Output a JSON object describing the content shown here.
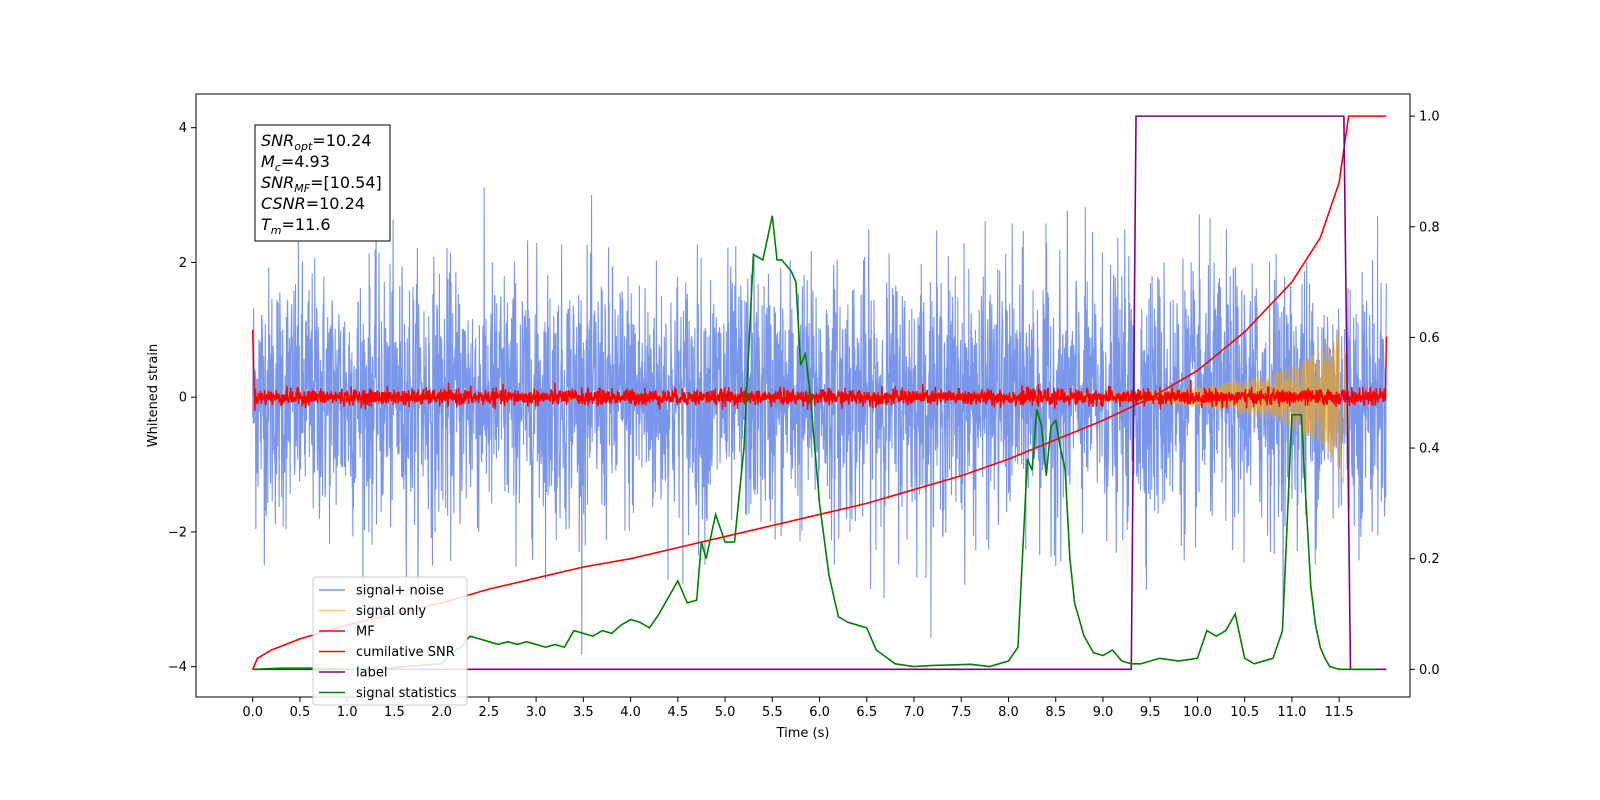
{
  "chart_data": {
    "type": "line",
    "title": "",
    "xlabel": "Time (s)",
    "ylabel": "Whitened strain",
    "ylabel_right": "",
    "xlim": [
      -0.6,
      12.25
    ],
    "ylim": [
      -4.45,
      4.5
    ],
    "ylim_right": [
      -0.05,
      1.04
    ],
    "x_ticks": [
      "0.0",
      "0.5",
      "1.0",
      "1.5",
      "2.0",
      "2.5",
      "3.0",
      "3.5",
      "4.0",
      "4.5",
      "5.0",
      "5.5",
      "6.0",
      "6.5",
      "7.0",
      "7.5",
      "8.0",
      "8.5",
      "9.0",
      "9.5",
      "10.0",
      "10.5",
      "11.0",
      "11.5"
    ],
    "y_ticks_left": [
      "4",
      "2",
      "0",
      "−2",
      "−4"
    ],
    "y_ticks_right": [
      "1.0",
      "0.8",
      "0.6",
      "0.4",
      "0.2",
      "0.0"
    ],
    "grid": false,
    "legend_position": "lower-left",
    "info_box": {
      "snr_opt": "SNR",
      "snr_opt_sub": "opt",
      "snr_opt_val": "=10.24",
      "mc": "M",
      "mc_sub": "c",
      "mc_val": "=4.93",
      "snr_mf": "SNR",
      "snr_mf_sub": "MF",
      "snr_mf_val": "=[10.54]",
      "csnr": "CSNR",
      "csnr_val": "=10.24",
      "tm": "T",
      "tm_sub": "m",
      "tm_val": "=11.6"
    },
    "series": [
      {
        "name": "signal+ noise",
        "color": "#4169e1",
        "axis": "left",
        "kind": "noise",
        "noise_half_range": 2.2,
        "noise_peak": 4.0,
        "x_start": 0.0,
        "x_end": 12.0
      },
      {
        "name": "signal only",
        "color": "#ffa500",
        "axis": "left",
        "kind": "chirp",
        "x_start": 0.0,
        "x_end": 11.6
      },
      {
        "name": "MF",
        "color": "#ff0000",
        "axis": "left",
        "kind": "mf_noise",
        "noise_half_range": 0.2,
        "x_start": 0.0,
        "x_end": 12.0
      },
      {
        "name": "cumilative SNR",
        "color": "#ff0000",
        "axis": "right",
        "x": [
          0.0,
          0.05,
          0.2,
          0.5,
          1.0,
          1.5,
          2.0,
          2.5,
          3.0,
          3.5,
          4.0,
          4.5,
          5.0,
          5.5,
          6.0,
          6.5,
          7.0,
          7.5,
          8.0,
          8.5,
          9.0,
          9.5,
          10.0,
          10.5,
          11.0,
          11.3,
          11.5,
          11.6,
          12.0
        ],
        "y": [
          0.0,
          0.02,
          0.035,
          0.055,
          0.08,
          0.1,
          0.12,
          0.145,
          0.165,
          0.185,
          0.2,
          0.22,
          0.24,
          0.26,
          0.28,
          0.3,
          0.325,
          0.35,
          0.38,
          0.415,
          0.45,
          0.49,
          0.54,
          0.61,
          0.7,
          0.78,
          0.88,
          1.0,
          1.0
        ]
      },
      {
        "name": "label",
        "color": "#800080",
        "axis": "right",
        "x": [
          0.0,
          9.3,
          9.35,
          11.55,
          11.62,
          12.0
        ],
        "y": [
          0.0,
          0.0,
          1.0,
          1.0,
          0.0,
          0.0
        ]
      },
      {
        "name": "signal statistics",
        "color": "#008000",
        "axis": "right",
        "x": [
          0.0,
          0.3,
          0.6,
          1.0,
          1.3,
          1.6,
          2.0,
          2.1,
          2.2,
          2.3,
          2.4,
          2.5,
          2.6,
          2.7,
          2.8,
          2.9,
          3.0,
          3.1,
          3.2,
          3.3,
          3.4,
          3.5,
          3.6,
          3.7,
          3.8,
          3.9,
          4.0,
          4.1,
          4.2,
          4.3,
          4.4,
          4.5,
          4.6,
          4.7,
          4.75,
          4.8,
          4.9,
          5.0,
          5.1,
          5.2,
          5.3,
          5.4,
          5.5,
          5.55,
          5.6,
          5.7,
          5.75,
          5.8,
          5.85,
          5.9,
          6.0,
          6.1,
          6.2,
          6.3,
          6.4,
          6.5,
          6.6,
          6.8,
          7.0,
          7.2,
          7.4,
          7.6,
          7.8,
          8.0,
          8.1,
          8.2,
          8.25,
          8.3,
          8.35,
          8.4,
          8.45,
          8.5,
          8.55,
          8.6,
          8.65,
          8.7,
          8.8,
          8.9,
          9.0,
          9.1,
          9.2,
          9.3,
          9.35,
          9.4,
          9.6,
          9.8,
          10.0,
          10.1,
          10.2,
          10.3,
          10.4,
          10.5,
          10.6,
          10.8,
          10.9,
          11.0,
          11.1,
          11.15,
          11.2,
          11.25,
          11.3,
          11.35,
          11.4,
          11.5,
          11.6,
          11.7,
          11.9
        ],
        "y": [
          0.0,
          0.002,
          0.002,
          0.0,
          0.0,
          0.005,
          0.01,
          0.03,
          0.04,
          0.06,
          0.055,
          0.05,
          0.045,
          0.05,
          0.045,
          0.05,
          0.045,
          0.04,
          0.045,
          0.04,
          0.07,
          0.065,
          0.06,
          0.07,
          0.065,
          0.08,
          0.09,
          0.085,
          0.075,
          0.1,
          0.13,
          0.16,
          0.12,
          0.125,
          0.23,
          0.2,
          0.28,
          0.23,
          0.23,
          0.4,
          0.75,
          0.74,
          0.82,
          0.74,
          0.74,
          0.72,
          0.7,
          0.55,
          0.57,
          0.5,
          0.3,
          0.17,
          0.095,
          0.085,
          0.08,
          0.075,
          0.035,
          0.01,
          0.005,
          0.007,
          0.008,
          0.009,
          0.005,
          0.015,
          0.04,
          0.38,
          0.36,
          0.47,
          0.44,
          0.35,
          0.44,
          0.45,
          0.4,
          0.36,
          0.2,
          0.12,
          0.06,
          0.03,
          0.025,
          0.035,
          0.015,
          0.01,
          0.01,
          0.01,
          0.02,
          0.015,
          0.02,
          0.07,
          0.06,
          0.07,
          0.1,
          0.02,
          0.01,
          0.02,
          0.07,
          0.46,
          0.46,
          0.3,
          0.15,
          0.08,
          0.04,
          0.02,
          0.005,
          0.0,
          0.0,
          0.0,
          0.0
        ]
      }
    ]
  }
}
